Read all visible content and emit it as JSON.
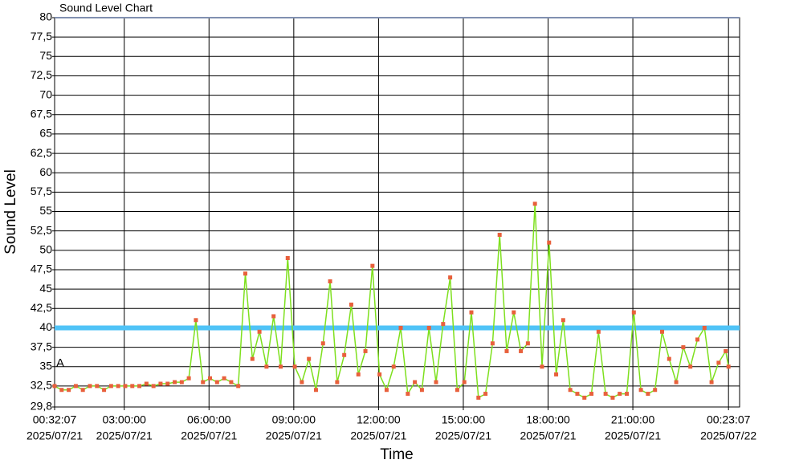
{
  "chart_data": {
    "type": "line",
    "title": "Sound Level Chart",
    "x_label": "Time",
    "y_label": "Sound Level",
    "annotations": [
      "A"
    ],
    "xlim": [
      "2025/07/21 00:32:07",
      "2025/07/22 00:46:40"
    ],
    "xticks": [
      {
        "value": "2025/07/21 00:32:07",
        "label": [
          "00:32:07",
          "2025/07/21"
        ]
      },
      {
        "value": "2025/07/21 03:00:00",
        "label": [
          "03:00:00",
          "2025/07/21"
        ]
      },
      {
        "value": "2025/07/21 06:00:00",
        "label": [
          "06:00:00",
          "2025/07/21"
        ]
      },
      {
        "value": "2025/07/21 09:00:00",
        "label": [
          "09:00:00",
          "2025/07/21"
        ]
      },
      {
        "value": "2025/07/21 12:00:00",
        "label": [
          "12:00:00",
          "2025/07/21"
        ]
      },
      {
        "value": "2025/07/21 15:00:00",
        "label": [
          "15:00:00",
          "2025/07/21"
        ]
      },
      {
        "value": "2025/07/21 18:00:00",
        "label": [
          "18:00:00",
          "2025/07/21"
        ]
      },
      {
        "value": "2025/07/21 21:00:00",
        "label": [
          "21:00:00",
          "2025/07/21"
        ]
      },
      {
        "value": "2025/07/22 00:23:07",
        "label": [
          "00:23:07",
          "2025/07/22"
        ]
      }
    ],
    "ylim": [
      29.8,
      80
    ],
    "yticks": [
      {
        "value": 29.8,
        "label": "29,8"
      },
      {
        "value": 32.5,
        "label": "32,5"
      },
      35,
      {
        "value": 37.5,
        "label": "37,5"
      },
      40,
      {
        "value": 42.5,
        "label": "42,5"
      },
      45,
      {
        "value": 47.5,
        "label": "47,5"
      },
      50,
      {
        "value": 52.5,
        "label": "52,5"
      },
      55,
      {
        "value": 57.5,
        "label": "57,5"
      },
      60,
      {
        "value": 62.5,
        "label": "62,5"
      },
      65,
      {
        "value": 67.5,
        "label": "67,5"
      },
      70,
      {
        "value": 72.5,
        "label": "72,5"
      },
      75,
      {
        "value": 77.5,
        "label": "77,5"
      },
      80
    ],
    "grid": true,
    "threshold": 40,
    "threshold_color": "#4fc3f7",
    "color": "#7ee01e",
    "marker_color": "#e8603c",
    "x": [
      "2025/07/21 00:32:07",
      "2025/07/21 00:47:07",
      "2025/07/21 01:02:07",
      "2025/07/21 01:17:07",
      "2025/07/21 01:32:07",
      "2025/07/21 01:47:07",
      "2025/07/21 02:02:07",
      "2025/07/21 02:17:07",
      "2025/07/21 02:32:07",
      "2025/07/21 02:47:07",
      "2025/07/21 03:02:07",
      "2025/07/21 03:17:07",
      "2025/07/21 03:32:07",
      "2025/07/21 03:47:07",
      "2025/07/21 04:02:07",
      "2025/07/21 04:17:07",
      "2025/07/21 04:32:07",
      "2025/07/21 04:47:07",
      "2025/07/21 05:02:07",
      "2025/07/21 05:17:07",
      "2025/07/21 05:32:07",
      "2025/07/21 05:47:07",
      "2025/07/21 06:02:07",
      "2025/07/21 06:17:07",
      "2025/07/21 06:32:07",
      "2025/07/21 06:47:07",
      "2025/07/21 07:02:07",
      "2025/07/21 07:17:07",
      "2025/07/21 07:32:07",
      "2025/07/21 07:47:07",
      "2025/07/21 08:02:07",
      "2025/07/21 08:17:07",
      "2025/07/21 08:32:07",
      "2025/07/21 08:47:07",
      "2025/07/21 09:02:07",
      "2025/07/21 09:17:07",
      "2025/07/21 09:32:07",
      "2025/07/21 09:47:07",
      "2025/07/21 10:02:07",
      "2025/07/21 10:17:07",
      "2025/07/21 10:32:07",
      "2025/07/21 10:47:07",
      "2025/07/21 11:02:07",
      "2025/07/21 11:17:07",
      "2025/07/21 11:32:07",
      "2025/07/21 11:47:07",
      "2025/07/21 12:02:07",
      "2025/07/21 12:17:07",
      "2025/07/21 12:32:07",
      "2025/07/21 12:47:07",
      "2025/07/21 13:02:07",
      "2025/07/21 13:17:07",
      "2025/07/21 13:32:07",
      "2025/07/21 13:47:07",
      "2025/07/21 14:02:07",
      "2025/07/21 14:17:07",
      "2025/07/21 14:32:07",
      "2025/07/21 14:47:07",
      "2025/07/21 15:02:07",
      "2025/07/21 15:17:07",
      "2025/07/21 15:32:07",
      "2025/07/21 15:47:07",
      "2025/07/21 16:02:07",
      "2025/07/21 16:17:07",
      "2025/07/21 16:32:07",
      "2025/07/21 16:47:07",
      "2025/07/21 17:02:07",
      "2025/07/21 17:17:07",
      "2025/07/21 17:32:07",
      "2025/07/21 17:47:07",
      "2025/07/21 18:02:07",
      "2025/07/21 18:17:07",
      "2025/07/21 18:32:07",
      "2025/07/21 18:47:07",
      "2025/07/21 19:02:07",
      "2025/07/21 19:17:07",
      "2025/07/21 19:32:07",
      "2025/07/21 19:47:07",
      "2025/07/21 20:02:07",
      "2025/07/21 20:17:07",
      "2025/07/21 20:32:07",
      "2025/07/21 20:47:07",
      "2025/07/21 21:02:07",
      "2025/07/21 21:17:07",
      "2025/07/21 21:32:07",
      "2025/07/21 21:47:07",
      "2025/07/21 22:02:07",
      "2025/07/21 22:17:07",
      "2025/07/21 22:32:07",
      "2025/07/21 22:47:07",
      "2025/07/21 23:02:07",
      "2025/07/21 23:17:07",
      "2025/07/21 23:32:07",
      "2025/07/21 23:47:07",
      "2025/07/22 00:02:07",
      "2025/07/22 00:17:07",
      "2025/07/22 00:23:07"
    ],
    "values": [
      32.5,
      32,
      32,
      32.5,
      32,
      32.5,
      32.5,
      32,
      32.5,
      32.5,
      32.5,
      32.5,
      32.5,
      32.8,
      32.5,
      32.8,
      32.8,
      33,
      33,
      33.5,
      41,
      33,
      33.5,
      33,
      33.5,
      33,
      32.5,
      47,
      36,
      39.5,
      35,
      41.5,
      35,
      49,
      35,
      33,
      36,
      32,
      38,
      46,
      33,
      36.5,
      43,
      34,
      37,
      48,
      34,
      32,
      35,
      40,
      31.5,
      33,
      32,
      40,
      33,
      40.5,
      46.5,
      32,
      33,
      42,
      31,
      31.5,
      38,
      52,
      37,
      42,
      37,
      38,
      56,
      35,
      51,
      34,
      41,
      32,
      31.5,
      31,
      31.5,
      39.5,
      31.5,
      31,
      31.5,
      31.5,
      42,
      32,
      31.5,
      32,
      39.5,
      36,
      33,
      37.5,
      35,
      38.5,
      40,
      33,
      35.5,
      37,
      35
    ]
  }
}
